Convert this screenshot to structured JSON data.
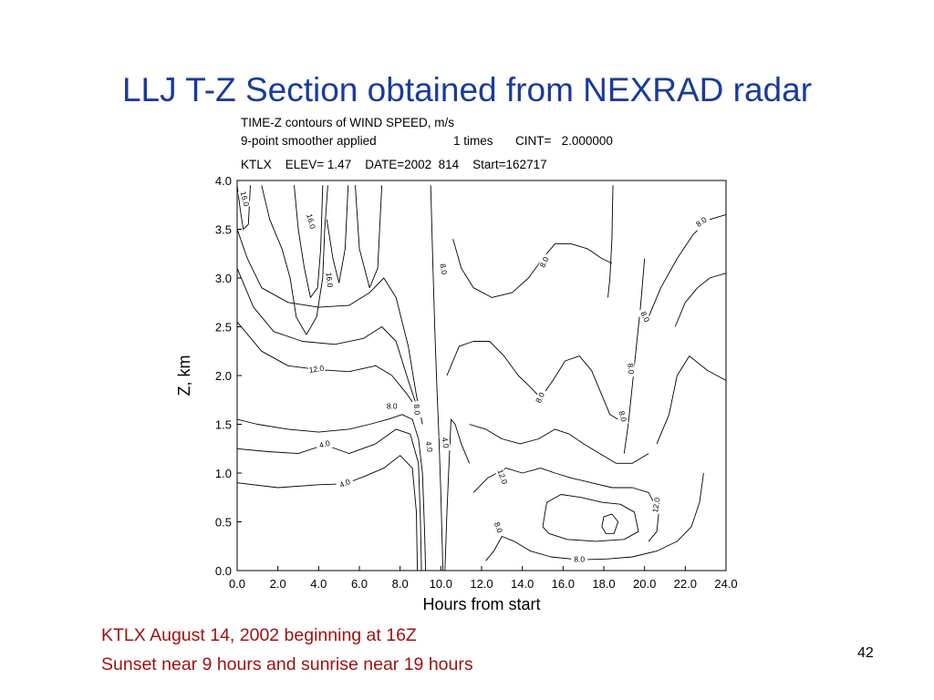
{
  "slide": {
    "title": "LLJ T-Z Section obtained from NEXRAD radar",
    "caption_lines": [
      "KTLX August 14, 2002 beginning at 16Z",
      "Sunset near 9 hours and sunrise near 19 hours"
    ],
    "page_number": "42"
  },
  "chart_data": {
    "type": "contour",
    "header": {
      "line1": "TIME-Z contours of WIND SPEED, m/s",
      "line2_left": "9-point smoother applied",
      "line2_times": "1 times",
      "line2_cint": "CINT=   2.000000",
      "line3": "KTLX    ELEV= 1.47    DATE=2002  814    Start=162717"
    },
    "xlabel": "Hours from start",
    "ylabel": "Z, km",
    "xlim": [
      0,
      24
    ],
    "ylim": [
      0,
      4
    ],
    "x_ticks": [
      "0.0",
      "2.0",
      "4.0",
      "6.0",
      "8.0",
      "10.0",
      "12.0",
      "14.0",
      "16.0",
      "18.0",
      "20.0",
      "22.0",
      "24.0"
    ],
    "y_ticks": [
      "0.0",
      "0.5",
      "1.0",
      "1.5",
      "2.0",
      "2.5",
      "3.0",
      "3.5",
      "4.0"
    ],
    "contour_interval": 2.0,
    "contour_labels": [
      {
        "text": "16.0",
        "x": 0.35,
        "y": 3.81,
        "angle": 75
      },
      {
        "text": "16.0",
        "x": 3.6,
        "y": 3.58,
        "angle": 75
      },
      {
        "text": "16.0",
        "x": 4.5,
        "y": 2.98,
        "angle": 85
      },
      {
        "text": "12.0",
        "x": 3.9,
        "y": 2.06,
        "angle": -8
      },
      {
        "text": "8.0",
        "x": 7.6,
        "y": 1.68,
        "angle": 0
      },
      {
        "text": "8.0",
        "x": 8.8,
        "y": 1.65,
        "angle": 85
      },
      {
        "text": "4.0",
        "x": 4.3,
        "y": 1.29,
        "angle": -15
      },
      {
        "text": "4.0",
        "x": 5.3,
        "y": 0.89,
        "angle": -25
      },
      {
        "text": "4.0",
        "x": 9.4,
        "y": 1.27,
        "angle": 80
      },
      {
        "text": "4.0",
        "x": 10.2,
        "y": 1.31,
        "angle": 80
      },
      {
        "text": "8.0",
        "x": 10.1,
        "y": 3.09,
        "angle": 80
      },
      {
        "text": "8.0",
        "x": 15.1,
        "y": 3.16,
        "angle": -65
      },
      {
        "text": "8.0",
        "x": 14.9,
        "y": 1.77,
        "angle": -65
      },
      {
        "text": "12.0",
        "x": 13.0,
        "y": 0.96,
        "angle": 70
      },
      {
        "text": "8.0",
        "x": 12.8,
        "y": 0.44,
        "angle": 70
      },
      {
        "text": "8.0",
        "x": 16.8,
        "y": 0.11,
        "angle": 0
      },
      {
        "text": "8.0",
        "x": 18.9,
        "y": 1.58,
        "angle": 75
      },
      {
        "text": "8.0",
        "x": 19.3,
        "y": 2.07,
        "angle": 85
      },
      {
        "text": "8.0",
        "x": 20.0,
        "y": 2.6,
        "angle": 65
      },
      {
        "text": "12.0",
        "x": 20.6,
        "y": 0.67,
        "angle": -80
      },
      {
        "text": "8.0",
        "x": 22.8,
        "y": 3.57,
        "angle": -35
      }
    ],
    "contours": [
      {
        "level": 8.0,
        "points": [
          [
            0,
            3.5
          ],
          [
            0.5,
            3.2
          ],
          [
            1.2,
            2.9
          ],
          [
            2.5,
            2.75
          ],
          [
            4,
            2.7
          ],
          [
            5.5,
            2.72
          ],
          [
            6.5,
            2.85
          ],
          [
            7.2,
            3.0
          ],
          [
            7.8,
            2.8
          ],
          [
            8.4,
            2.3
          ],
          [
            8.8,
            1.8
          ],
          [
            9.1,
            1.5
          ]
        ]
      },
      {
        "level": 10.0,
        "points": [
          [
            0,
            3.1
          ],
          [
            0.8,
            2.7
          ],
          [
            1.8,
            2.45
          ],
          [
            3.2,
            2.35
          ],
          [
            4.8,
            2.32
          ],
          [
            6.2,
            2.38
          ],
          [
            7.1,
            2.5
          ],
          [
            7.8,
            2.35
          ],
          [
            8.4,
            1.95
          ],
          [
            8.8,
            1.7
          ]
        ]
      },
      {
        "level": 12.0,
        "points": [
          [
            0,
            2.55
          ],
          [
            1.2,
            2.25
          ],
          [
            2.5,
            2.1
          ],
          [
            4,
            2.06
          ],
          [
            5.5,
            2.04
          ],
          [
            6.8,
            2.1
          ],
          [
            7.6,
            2.0
          ],
          [
            8.3,
            1.82
          ],
          [
            8.7,
            1.7
          ]
        ]
      },
      {
        "level": 14.0,
        "points": [
          [
            1.2,
            3.95
          ],
          [
            1.6,
            3.6
          ],
          [
            2.2,
            3.3
          ],
          [
            2.6,
            3.0
          ],
          [
            2.9,
            2.6
          ],
          [
            3.4,
            2.42
          ],
          [
            3.9,
            2.6
          ],
          [
            4.2,
            3.0
          ],
          [
            4.3,
            3.5
          ],
          [
            4.45,
            3.95
          ]
        ]
      },
      {
        "level": 16.0,
        "points": [
          [
            2.8,
            3.95
          ],
          [
            3.0,
            3.5
          ],
          [
            3.3,
            3.1
          ],
          [
            3.6,
            2.8
          ],
          [
            3.95,
            2.9
          ],
          [
            4.1,
            3.3
          ],
          [
            4.2,
            3.95
          ]
        ]
      },
      {
        "level": 16.0,
        "points": [
          [
            0,
            3.95
          ],
          [
            0.15,
            3.7
          ],
          [
            0.3,
            3.5
          ],
          [
            0.55,
            3.55
          ],
          [
            0.65,
            3.95
          ]
        ]
      },
      {
        "level": 16.0,
        "points": [
          [
            4.4,
            3.6
          ],
          [
            4.7,
            3.2
          ],
          [
            5.0,
            2.95
          ],
          [
            5.3,
            3.3
          ],
          [
            5.45,
            3.95
          ]
        ]
      },
      {
        "level": 14.0,
        "points": [
          [
            5.8,
            3.95
          ],
          [
            6.0,
            3.3
          ],
          [
            6.5,
            2.9
          ],
          [
            6.9,
            3.1
          ],
          [
            7.1,
            3.95
          ]
        ]
      },
      {
        "level": 6.0,
        "points": [
          [
            0,
            1.55
          ],
          [
            1,
            1.5
          ],
          [
            2.5,
            1.45
          ],
          [
            4,
            1.42
          ],
          [
            5.5,
            1.45
          ],
          [
            6.5,
            1.5
          ],
          [
            7.4,
            1.55
          ],
          [
            8.1,
            1.6
          ],
          [
            8.6,
            1.55
          ],
          [
            8.9,
            1.35
          ],
          [
            9.1,
            1.0
          ],
          [
            9.2,
            0.4
          ],
          [
            9.25,
            0
          ]
        ]
      },
      {
        "level": 4.0,
        "points": [
          [
            0,
            1.25
          ],
          [
            1.5,
            1.22
          ],
          [
            3,
            1.2
          ],
          [
            4.3,
            1.29
          ],
          [
            5.5,
            1.2
          ],
          [
            6.8,
            1.3
          ],
          [
            7.8,
            1.45
          ],
          [
            8.5,
            1.4
          ],
          [
            8.9,
            1.1
          ],
          [
            9.0,
            0.5
          ],
          [
            9.05,
            0
          ]
        ]
      },
      {
        "level": 4.0,
        "points": [
          [
            0,
            0.9
          ],
          [
            2,
            0.85
          ],
          [
            4,
            0.88
          ],
          [
            5.3,
            0.89
          ],
          [
            6.3,
            0.97
          ],
          [
            7.2,
            1.05
          ],
          [
            8.0,
            1.18
          ],
          [
            8.6,
            1.05
          ],
          [
            8.8,
            0.6
          ],
          [
            8.85,
            0
          ]
        ]
      },
      {
        "level": 8.0,
        "points": [
          [
            9.5,
            3.95
          ],
          [
            9.6,
            3.2
          ],
          [
            9.7,
            2.5
          ],
          [
            9.8,
            1.9
          ],
          [
            9.9,
            1.4
          ],
          [
            10.0,
            0.8
          ],
          [
            10.1,
            0
          ]
        ]
      },
      {
        "level": 6.0,
        "points": [
          [
            10.2,
            0
          ],
          [
            10.3,
            0.6
          ],
          [
            10.4,
            1.1
          ],
          [
            10.5,
            1.55
          ],
          [
            10.7,
            1.5
          ],
          [
            11.0,
            1.3
          ],
          [
            11.4,
            1.1
          ]
        ]
      },
      {
        "level": 8.0,
        "points": [
          [
            10.6,
            3.4
          ],
          [
            11.0,
            3.1
          ],
          [
            11.6,
            2.9
          ],
          [
            12.5,
            2.8
          ],
          [
            13.5,
            2.85
          ],
          [
            14.3,
            3.0
          ],
          [
            15.0,
            3.2
          ],
          [
            15.6,
            3.35
          ],
          [
            16.4,
            3.35
          ],
          [
            17.2,
            3.3
          ],
          [
            17.9,
            3.2
          ],
          [
            18.4,
            3.15
          ]
        ]
      },
      {
        "level": 8.0,
        "points": [
          [
            10.3,
            2.0
          ],
          [
            10.9,
            2.3
          ],
          [
            11.6,
            2.35
          ],
          [
            12.4,
            2.35
          ],
          [
            13.1,
            2.2
          ],
          [
            13.8,
            2.0
          ],
          [
            14.3,
            1.9
          ],
          [
            14.9,
            1.77
          ],
          [
            15.5,
            1.95
          ],
          [
            16.1,
            2.15
          ],
          [
            16.8,
            2.2
          ],
          [
            17.4,
            2.05
          ],
          [
            17.9,
            1.8
          ],
          [
            18.3,
            1.6
          ],
          [
            18.7,
            1.55
          ]
        ]
      },
      {
        "level": 10.0,
        "points": [
          [
            11.4,
            1.5
          ],
          [
            12.2,
            1.45
          ],
          [
            13.0,
            1.35
          ],
          [
            13.9,
            1.3
          ],
          [
            14.8,
            1.35
          ],
          [
            15.6,
            1.45
          ],
          [
            16.3,
            1.4
          ],
          [
            17.0,
            1.3
          ],
          [
            17.8,
            1.2
          ],
          [
            18.6,
            1.1
          ],
          [
            19.4,
            1.1
          ],
          [
            20.2,
            1.2
          ]
        ]
      },
      {
        "level": 12.0,
        "points": [
          [
            11.6,
            0.8
          ],
          [
            12.3,
            0.95
          ],
          [
            13.2,
            1.05
          ],
          [
            14.0,
            1.0
          ],
          [
            14.9,
            1.05
          ],
          [
            15.6,
            1.0
          ],
          [
            16.4,
            0.95
          ],
          [
            17.4,
            0.9
          ],
          [
            18.4,
            0.85
          ],
          [
            19.4,
            0.85
          ],
          [
            20.2,
            0.8
          ],
          [
            20.7,
            0.6
          ],
          [
            20.6,
            0.4
          ],
          [
            20.2,
            0.3
          ]
        ]
      },
      {
        "level": 8.0,
        "points": [
          [
            12.2,
            0.1
          ],
          [
            12.6,
            0.2
          ],
          [
            13.0,
            0.35
          ],
          [
            13.6,
            0.3
          ],
          [
            14.4,
            0.2
          ],
          [
            15.4,
            0.14
          ],
          [
            16.8,
            0.11
          ],
          [
            18.2,
            0.12
          ],
          [
            19.4,
            0.14
          ],
          [
            20.6,
            0.2
          ],
          [
            21.6,
            0.3
          ],
          [
            22.3,
            0.45
          ],
          [
            22.7,
            0.7
          ],
          [
            22.9,
            1.0
          ]
        ]
      },
      {
        "level": 14.0,
        "points": [
          [
            15.0,
            0.45
          ],
          [
            15.2,
            0.7
          ],
          [
            15.9,
            0.78
          ],
          [
            16.9,
            0.75
          ],
          [
            17.9,
            0.7
          ],
          [
            18.8,
            0.68
          ],
          [
            19.5,
            0.6
          ],
          [
            19.7,
            0.4
          ],
          [
            19.0,
            0.32
          ],
          [
            17.6,
            0.3
          ],
          [
            16.2,
            0.32
          ],
          [
            15.3,
            0.38
          ],
          [
            15.0,
            0.45
          ]
        ]
      },
      {
        "level": 16.0,
        "points": [
          [
            17.9,
            0.45
          ],
          [
            18.0,
            0.55
          ],
          [
            18.4,
            0.58
          ],
          [
            18.7,
            0.5
          ],
          [
            18.5,
            0.38
          ],
          [
            18.1,
            0.38
          ],
          [
            17.9,
            0.45
          ]
        ]
      },
      {
        "level": 8.0,
        "points": [
          [
            18.45,
            3.95
          ],
          [
            18.4,
            3.4
          ],
          [
            18.3,
            3.0
          ],
          [
            18.2,
            2.8
          ]
        ]
      },
      {
        "level": 8.0,
        "points": [
          [
            20.0,
            3.2
          ],
          [
            19.8,
            2.7
          ],
          [
            19.6,
            2.3
          ],
          [
            19.4,
            1.9
          ],
          [
            19.2,
            1.5
          ],
          [
            19.0,
            1.2
          ]
        ]
      },
      {
        "level": 8.0,
        "points": [
          [
            20.2,
            2.6
          ],
          [
            20.8,
            2.9
          ],
          [
            21.6,
            3.2
          ],
          [
            22.4,
            3.45
          ],
          [
            23.2,
            3.6
          ],
          [
            24,
            3.65
          ]
        ]
      },
      {
        "level": 10.0,
        "points": [
          [
            20.6,
            1.3
          ],
          [
            21.2,
            1.6
          ],
          [
            21.6,
            2.0
          ],
          [
            22.2,
            2.2
          ],
          [
            23.1,
            2.05
          ],
          [
            24,
            1.95
          ]
        ]
      },
      {
        "level": 10.0,
        "points": [
          [
            21.5,
            2.5
          ],
          [
            22.0,
            2.75
          ],
          [
            22.6,
            2.9
          ],
          [
            23.2,
            3.0
          ],
          [
            24,
            3.05
          ]
        ]
      }
    ]
  }
}
